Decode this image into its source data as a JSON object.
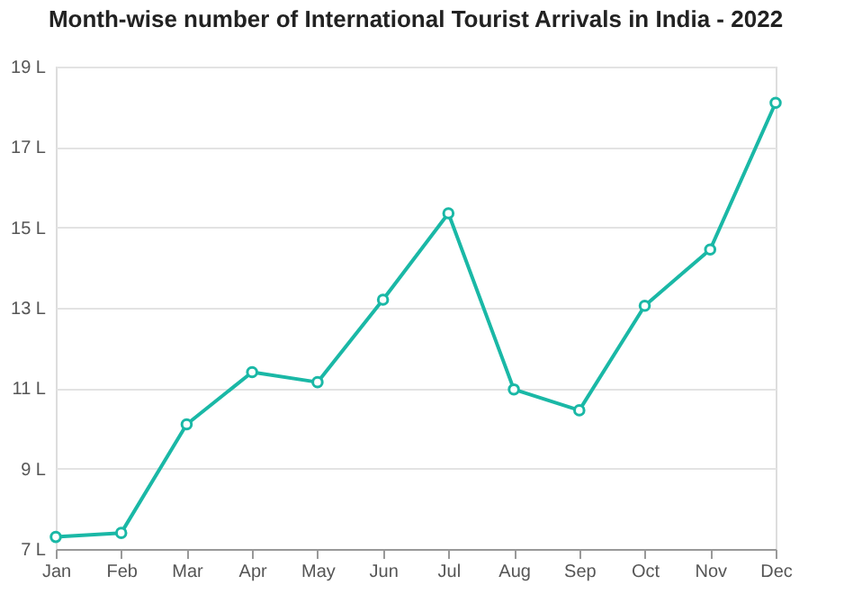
{
  "chart_data": {
    "type": "line",
    "title": "Month-wise number of International Tourist Arrivals in India - 2022",
    "categories": [
      "Jan",
      "Feb",
      "Mar",
      "Apr",
      "May",
      "Jun",
      "Jul",
      "Aug",
      "Sep",
      "Oct",
      "Nov",
      "Dec"
    ],
    "series": [
      {
        "color": "#1ab8a6",
        "values": [
          7.3,
          7.4,
          10.1,
          11.4,
          11.15,
          13.2,
          15.35,
          10.97,
          10.45,
          13.05,
          14.45,
          18.1
        ]
      }
    ],
    "ylim": [
      7,
      19
    ],
    "yticks": [
      {
        "value": 7,
        "label": "7 L"
      },
      {
        "value": 9,
        "label": "9 L"
      },
      {
        "value": 11,
        "label": "11 L"
      },
      {
        "value": 13,
        "label": "13 L"
      },
      {
        "value": 15,
        "label": "15 L"
      },
      {
        "value": 17,
        "label": "17 L"
      },
      {
        "value": 19,
        "label": "19 L"
      }
    ],
    "grid": "y",
    "marker": "circle",
    "line_style": "solid"
  }
}
